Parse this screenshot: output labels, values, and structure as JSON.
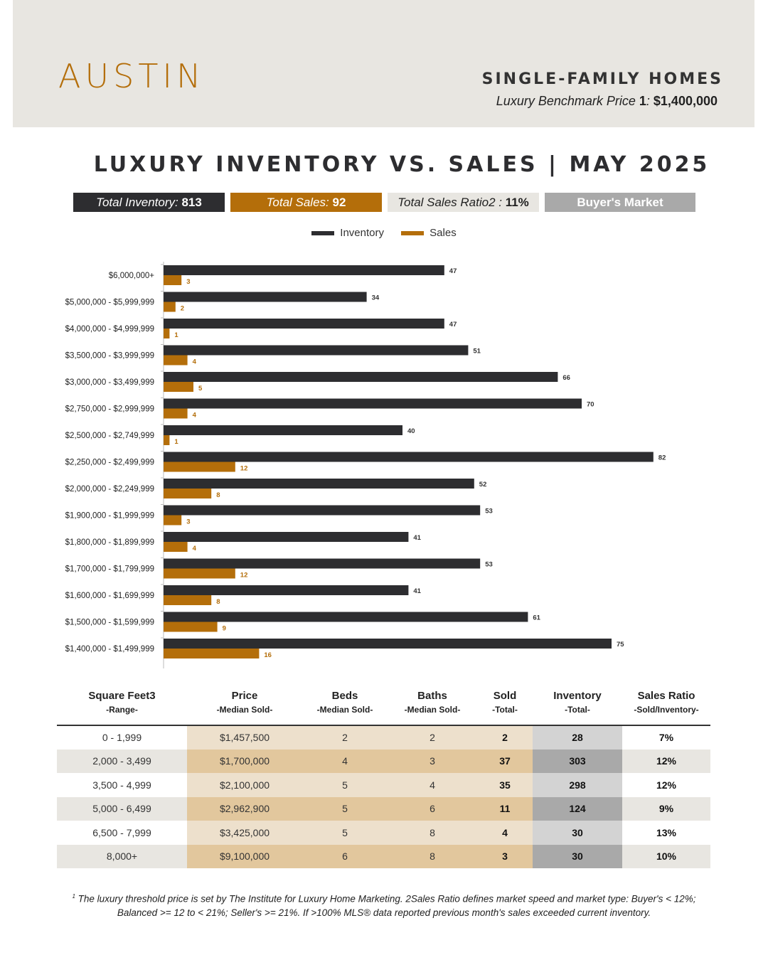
{
  "header": {
    "city": "AUSTIN",
    "title": "SINGLE-FAMILY HOMES",
    "benchmark_label": "Luxury Benchmark Price ",
    "benchmark_note": "1",
    "benchmark_sep": ": ",
    "benchmark_value": "$1,400,000"
  },
  "main_title": "LUXURY INVENTORY VS. SALES | MAY 2025",
  "stats": {
    "inventory_label": "Total Inventory: ",
    "inventory_value": "813",
    "sales_label": "Total Sales: ",
    "sales_value": "92",
    "ratio_label": "Total Sales Ratio2 : ",
    "ratio_value": "11%",
    "market": "Buyer's Market"
  },
  "colors": {
    "inventory": "#2d2d30",
    "sales": "#b46e0a",
    "header_bg": "#e8e6e1"
  },
  "chart_data": {
    "type": "bar",
    "orientation": "horizontal",
    "legend_position": "top-center",
    "categories": [
      "$6,000,000+",
      "$5,000,000 - $5,999,999",
      "$4,000,000 - $4,999,999",
      "$3,500,000 - $3,999,999",
      "$3,000,000 - $3,499,999",
      "$2,750,000 - $2,999,999",
      "$2,500,000 - $2,749,999",
      "$2,250,000 - $2,499,999",
      "$2,000,000 - $2,249,999",
      "$1,900,000 - $1,999,999",
      "$1,800,000 - $1,899,999",
      "$1,700,000 - $1,799,999",
      "$1,600,000 - $1,699,999",
      "$1,500,000 - $1,599,999",
      "$1,400,000 - $1,499,999"
    ],
    "series": [
      {
        "name": "Inventory",
        "values": [
          47,
          34,
          47,
          51,
          66,
          70,
          40,
          82,
          52,
          53,
          41,
          53,
          41,
          61,
          75
        ]
      },
      {
        "name": "Sales",
        "values": [
          3,
          2,
          1,
          4,
          5,
          4,
          1,
          12,
          8,
          3,
          4,
          12,
          8,
          9,
          16
        ]
      }
    ],
    "xlim": [
      0,
      82
    ]
  },
  "table": {
    "headers": [
      {
        "label": "Square Feet3",
        "sub": "-Range-"
      },
      {
        "label": "Price",
        "sub": "-Median Sold-"
      },
      {
        "label": "Beds",
        "sub": "-Median Sold-"
      },
      {
        "label": "Baths",
        "sub": "-Median Sold-"
      },
      {
        "label": "Sold",
        "sub": "-Total-"
      },
      {
        "label": "Inventory",
        "sub": "-Total-"
      },
      {
        "label": "Sales Ratio",
        "sub": "-Sold/Inventory-"
      }
    ],
    "rows": [
      [
        "0 - 1,999",
        "$1,457,500",
        "2",
        "2",
        "2",
        "28",
        "7%"
      ],
      [
        "2,000 - 3,499",
        "$1,700,000",
        "4",
        "3",
        "37",
        "303",
        "12%"
      ],
      [
        "3,500 - 4,999",
        "$2,100,000",
        "5",
        "4",
        "35",
        "298",
        "12%"
      ],
      [
        "5,000 - 6,499",
        "$2,962,900",
        "5",
        "6",
        "11",
        "124",
        "9%"
      ],
      [
        "6,500 - 7,999",
        "$3,425,000",
        "5",
        "8",
        "4",
        "30",
        "13%"
      ],
      [
        "8,000+",
        "$9,100,000",
        "6",
        "8",
        "3",
        "30",
        "10%"
      ]
    ]
  },
  "footnote": {
    "marker": "1",
    "text": " The luxury threshold price is set by The Institute for Luxury Home Marketing. 2Sales Ratio defines market speed and market type: Buyer's < 12%; Balanced >= 12 to < 21%; Seller's >= 21%. If >100% MLS® data reported previous month's sales exceeded current inventory."
  }
}
